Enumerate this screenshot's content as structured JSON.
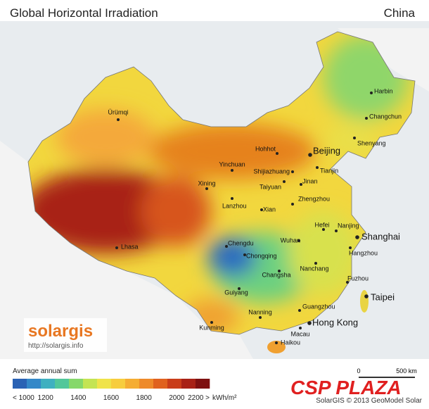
{
  "header": {
    "title": "Global Horizontal Irradiation",
    "region": "China"
  },
  "cities": [
    "Harbin",
    "Changchun",
    "Shenyang",
    "Beijing",
    "Tianjin",
    "Hohhot",
    "Ürümqi",
    "Yinchuan",
    "Shijiazhuang",
    "Taiyuan",
    "Jinan",
    "Xining",
    "Lanzhou",
    "Xian",
    "Zhengzhou",
    "Hefei",
    "Nanjing",
    "Shanghai",
    "Hangzhou",
    "Wuhan",
    "Chengdu",
    "Chongqing",
    "Lhasa",
    "Changsha",
    "Nanchang",
    "Fuzhou",
    "Taipei",
    "Guiyang",
    "Kunming",
    "Nanning",
    "Guangzhou",
    "Hong Kong",
    "Macau",
    "Haikou"
  ],
  "legend": {
    "title": "Average annual sum",
    "labels": [
      "< 1000",
      "1200",
      "1400",
      "1600",
      "1800",
      "2000",
      "2200 >"
    ],
    "unit": "kWh/m²",
    "colors": [
      "#2a62b4",
      "#3488c8",
      "#3fb0c0",
      "#52c79a",
      "#86d86a",
      "#c4e453",
      "#f0e34a",
      "#f7cd3e",
      "#f5ad33",
      "#ee8a2a",
      "#e0621f",
      "#c93d1a",
      "#a82116",
      "#7e1010"
    ]
  },
  "scale": {
    "start": "0",
    "end": "500 km"
  },
  "logo": {
    "name": "solargis",
    "url": "http://solargis.info"
  },
  "credit": "SolarGIS © 2013 GeoModel Solar",
  "brand": "CSP PLAZA"
}
